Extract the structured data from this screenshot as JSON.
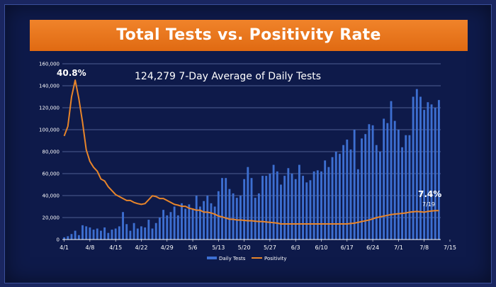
{
  "chart_data": {
    "type": "bar",
    "title": "Total Tests vs. Positivity Rate",
    "subtitle": "124,279 7-Day Average of Daily Tests",
    "y_ticks": [
      "160,000",
      "140,000",
      "120,000",
      "100,000",
      "80,000",
      "60,000",
      "40,000",
      "20,000",
      "0"
    ],
    "ylim": [
      0,
      160000
    ],
    "x_tick_labels": [
      "4/1",
      "4/8",
      "4/15",
      "4/22",
      "4/29",
      "5/6",
      "5/13",
      "5/20",
      "5/27",
      "6/3",
      "6/10",
      "6/17",
      "6/24",
      "7/1",
      "7/8",
      "7/15"
    ],
    "series": [
      {
        "name": "Daily Tests",
        "type": "bar",
        "color": "#3d6fd1",
        "values": [
          2000,
          3000,
          5000,
          8000,
          4000,
          13000,
          12000,
          11000,
          9000,
          10000,
          8000,
          11000,
          6000,
          9000,
          10000,
          12000,
          25000,
          14000,
          8000,
          15000,
          10000,
          12000,
          11000,
          18000,
          10000,
          15000,
          20000,
          27000,
          22000,
          25000,
          30000,
          22000,
          33000,
          28000,
          32000,
          28000,
          40000,
          30000,
          35000,
          40000,
          33000,
          30000,
          44000,
          56000,
          56000,
          46000,
          42000,
          38000,
          40000,
          55000,
          66000,
          56000,
          38000,
          42000,
          58000,
          58000,
          60000,
          68000,
          62000,
          50000,
          58000,
          65000,
          60000,
          55000,
          68000,
          58000,
          52000,
          54000,
          62000,
          63000,
          62000,
          72000,
          66000,
          75000,
          80000,
          78000,
          86000,
          91000,
          82000,
          100000,
          64000,
          92000,
          96000,
          105000,
          104000,
          86000,
          80000,
          110000,
          106000,
          126000,
          108000,
          100000,
          84000,
          95000,
          95000,
          130000,
          137000,
          130000,
          118000,
          125000,
          123000,
          120000,
          127000
        ]
      },
      {
        "name": "Positivity",
        "type": "line",
        "color": "#e8852a",
        "values": [
          26.5,
          29.0,
          36.5,
          40.8,
          36.0,
          30.0,
          23.0,
          20.0,
          18.5,
          17.5,
          15.5,
          15.0,
          13.5,
          12.5,
          11.5,
          11.0,
          10.5,
          10.0,
          10.0,
          9.5,
          9.2,
          9.0,
          9.2,
          10.2,
          11.2,
          11.0,
          10.5,
          10.5,
          10.0,
          9.5,
          9.0,
          8.8,
          8.5,
          8.5,
          8.0,
          7.8,
          7.5,
          7.5,
          7.0,
          7.0,
          6.8,
          6.5,
          6.0,
          5.8,
          5.5,
          5.2,
          5.2,
          5.0,
          5.0,
          4.9,
          4.8,
          4.8,
          4.7,
          4.6,
          4.6,
          4.5,
          4.4,
          4.3,
          4.2,
          4.0,
          4.0,
          4.0,
          4.0,
          4.0,
          4.0,
          4.0,
          4.0,
          4.0,
          4.0,
          4.0,
          4.0,
          4.0,
          4.0,
          4.0,
          4.0,
          4.0,
          4.0,
          4.0,
          4.1,
          4.2,
          4.4,
          4.6,
          4.8,
          5.0,
          5.3,
          5.6,
          5.8,
          6.0,
          6.2,
          6.4,
          6.5,
          6.6,
          6.7,
          6.8,
          7.0,
          7.1,
          7.2,
          7.1,
          7.0,
          7.2,
          7.3,
          7.4,
          7.4
        ]
      }
    ],
    "annotations": {
      "peak": "40.8%",
      "latest": "7.4%",
      "latest_date": "7/19"
    },
    "legend_position": "bottom-center"
  }
}
